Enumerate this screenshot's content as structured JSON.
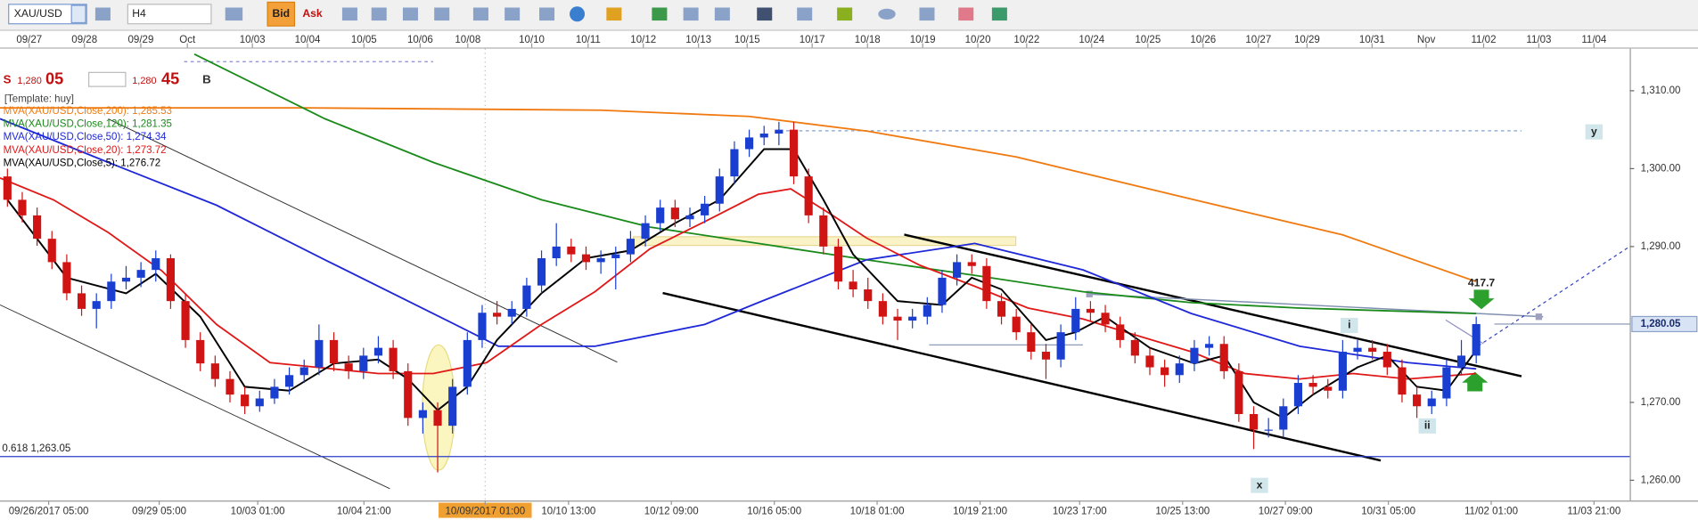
{
  "toolbar": {
    "symbol": "XAU/USD",
    "timeframe": "H4",
    "bid": "Bid",
    "ask": "Ask"
  },
  "quote": {
    "sell": "S",
    "sell_big": "1,280",
    "sell_pips": "05",
    "buy_big": "1,280",
    "buy_pips": "45",
    "buy": "B"
  },
  "template": "[Template: huy]",
  "chart_data": {
    "type": "candlestick",
    "symbol": "XAU/USD",
    "xlim": [
      -0.5,
      109.35
    ],
    "ylim": [
      1257.4,
      1315.4
    ],
    "yticks": [
      {
        "value": 1260,
        "label": "1,260.00"
      },
      {
        "value": 1270,
        "label": "1,270.00"
      },
      {
        "value": 1290,
        "label": "1,290.00"
      },
      {
        "value": 1300,
        "label": "1,300.00"
      },
      {
        "value": 1310,
        "label": "1,310.00"
      }
    ],
    "last_price": {
      "value": 1280.05,
      "label": "1,280.05"
    },
    "top_xticks": [
      {
        "value": 1.47,
        "label": "09/27"
      },
      {
        "value": 5.19,
        "label": "09/28"
      },
      {
        "value": 8.99,
        "label": "09/29"
      },
      {
        "value": 12.13,
        "label": "Oct"
      },
      {
        "value": 16.51,
        "label": "10/03"
      },
      {
        "value": 20.23,
        "label": "10/04"
      },
      {
        "value": 24.03,
        "label": "10/05"
      },
      {
        "value": 27.82,
        "label": "10/06"
      },
      {
        "value": 31.03,
        "label": "10/08"
      },
      {
        "value": 35.34,
        "label": "10/10"
      },
      {
        "value": 39.14,
        "label": "10/11"
      },
      {
        "value": 42.86,
        "label": "10/12"
      },
      {
        "value": 46.58,
        "label": "10/13"
      },
      {
        "value": 49.86,
        "label": "10/15"
      },
      {
        "value": 54.24,
        "label": "10/17"
      },
      {
        "value": 57.97,
        "label": "10/18"
      },
      {
        "value": 61.69,
        "label": "10/19"
      },
      {
        "value": 65.41,
        "label": "10/20"
      },
      {
        "value": 68.7,
        "label": "10/22"
      },
      {
        "value": 73.08,
        "label": "10/24"
      },
      {
        "value": 76.87,
        "label": "10/25"
      },
      {
        "value": 80.59,
        "label": "10/26"
      },
      {
        "value": 84.32,
        "label": "10/27"
      },
      {
        "value": 87.6,
        "label": "10/29"
      },
      {
        "value": 91.98,
        "label": "10/31"
      },
      {
        "value": 95.63,
        "label": "Nov"
      },
      {
        "value": 99.5,
        "label": "11/02"
      },
      {
        "value": 103.22,
        "label": "11/03"
      },
      {
        "value": 106.94,
        "label": "11/04"
      }
    ],
    "xticks": [
      {
        "value": 2.78,
        "label": "09/26/2017 05:00"
      },
      {
        "value": 10.23,
        "label": "09/29 05:00"
      },
      {
        "value": 16.87,
        "label": "10/03 01:00"
      },
      {
        "value": 24.03,
        "label": "10/04 21:00"
      },
      {
        "value": 32.2,
        "label": "10/09/2017 01:00"
      },
      {
        "value": 37.82,
        "label": "10/10 13:00"
      },
      {
        "value": 44.75,
        "label": "10/12 09:00"
      },
      {
        "value": 51.69,
        "label": "10/16 05:00"
      },
      {
        "value": 58.62,
        "label": "10/18 01:00"
      },
      {
        "value": 65.56,
        "label": "10/19 21:00"
      },
      {
        "value": 72.27,
        "label": "10/23 17:00"
      },
      {
        "value": 79.21,
        "label": "10/25 13:00"
      },
      {
        "value": 86.14,
        "label": "10/27 09:00"
      },
      {
        "value": 93.08,
        "label": "10/31 05:00"
      },
      {
        "value": 100.01,
        "label": "11/02 01:00"
      },
      {
        "value": 106.94,
        "label": "11/03 21:00"
      }
    ],
    "cursor_xtick": 4,
    "up_color": "#1a3fd0",
    "down_color": "#d01414",
    "ohlc": [
      [
        1299,
        1300,
        1295.1,
        1296
      ],
      [
        1296,
        1297,
        1293.1,
        1294
      ],
      [
        1294,
        1295,
        1290.1,
        1291
      ],
      [
        1291,
        1292,
        1287.1,
        1288
      ],
      [
        1288,
        1289,
        1283.1,
        1284
      ],
      [
        1284,
        1285,
        1281.1,
        1282
      ],
      [
        1282,
        1284,
        1279.5,
        1283
      ],
      [
        1283,
        1286.5,
        1282,
        1285.5
      ],
      [
        1285.5,
        1287.5,
        1284.5,
        1286
      ],
      [
        1286,
        1288,
        1284.8,
        1287
      ],
      [
        1287,
        1289.5,
        1285.5,
        1288.5
      ],
      [
        1288.5,
        1289,
        1282,
        1283
      ],
      [
        1283,
        1284,
        1277,
        1278
      ],
      [
        1278,
        1279,
        1274,
        1275
      ],
      [
        1275,
        1276,
        1272,
        1273
      ],
      [
        1273,
        1274,
        1270,
        1271
      ],
      [
        1271,
        1272,
        1268.5,
        1269.5
      ],
      [
        1269.5,
        1271.5,
        1268.8,
        1270.5
      ],
      [
        1270.5,
        1273,
        1269.8,
        1272
      ],
      [
        1272,
        1274.5,
        1271,
        1273.5
      ],
      [
        1273.5,
        1275.5,
        1272.5,
        1274.5
      ],
      [
        1274.5,
        1280,
        1273.5,
        1278
      ],
      [
        1278,
        1279,
        1274,
        1275
      ],
      [
        1275,
        1276,
        1273,
        1274
      ],
      [
        1274,
        1277,
        1273,
        1276
      ],
      [
        1276,
        1278.5,
        1275,
        1277
      ],
      [
        1277,
        1278,
        1273,
        1274
      ],
      [
        1274,
        1275,
        1267,
        1268
      ],
      [
        1268,
        1270,
        1266,
        1269
      ],
      [
        1269,
        1270,
        1261,
        1267
      ],
      [
        1267,
        1273,
        1266,
        1272
      ],
      [
        1272,
        1279,
        1271,
        1278
      ],
      [
        1278,
        1282.5,
        1277,
        1281.5
      ],
      [
        1281.5,
        1283,
        1280,
        1281
      ],
      [
        1281,
        1283,
        1280,
        1282
      ],
      [
        1282,
        1286,
        1281,
        1285
      ],
      [
        1285,
        1289.5,
        1284,
        1288.5
      ],
      [
        1288.5,
        1293,
        1287.5,
        1290
      ],
      [
        1290,
        1291,
        1288,
        1289
      ],
      [
        1289,
        1290,
        1287,
        1288
      ],
      [
        1288,
        1289.5,
        1286.5,
        1288.5
      ],
      [
        1288.5,
        1290,
        1284.5,
        1289
      ],
      [
        1289,
        1292,
        1288,
        1291
      ],
      [
        1291,
        1294,
        1290,
        1293
      ],
      [
        1293,
        1296,
        1292,
        1295
      ],
      [
        1295,
        1296,
        1292.5,
        1293.5
      ],
      [
        1293.5,
        1295,
        1292.5,
        1294
      ],
      [
        1294,
        1296.5,
        1293,
        1295.5
      ],
      [
        1295.5,
        1300,
        1294.5,
        1299
      ],
      [
        1299,
        1303.5,
        1298,
        1302.5
      ],
      [
        1302.5,
        1305,
        1301.5,
        1304
      ],
      [
        1304,
        1305.5,
        1303,
        1304.5
      ],
      [
        1304.5,
        1306,
        1303,
        1305
      ],
      [
        1305,
        1306,
        1298,
        1299
      ],
      [
        1299,
        1300,
        1293,
        1294
      ],
      [
        1294,
        1295,
        1289,
        1290
      ],
      [
        1290,
        1291,
        1284.5,
        1285.5
      ],
      [
        1285.5,
        1287,
        1283.5,
        1284.5
      ],
      [
        1284.5,
        1286,
        1282,
        1283
      ],
      [
        1283,
        1284,
        1280,
        1281
      ],
      [
        1281,
        1282,
        1278,
        1280.5
      ],
      [
        1280.5,
        1282,
        1279.5,
        1281
      ],
      [
        1281,
        1283.5,
        1280,
        1282.5
      ],
      [
        1282.5,
        1287,
        1281.5,
        1286
      ],
      [
        1286,
        1289,
        1285,
        1288
      ],
      [
        1288,
        1289,
        1286.5,
        1287.5
      ],
      [
        1287.5,
        1288.5,
        1282,
        1283
      ],
      [
        1283,
        1284,
        1280,
        1281
      ],
      [
        1281,
        1282,
        1278,
        1279
      ],
      [
        1279,
        1280,
        1275.5,
        1276.5
      ],
      [
        1276.5,
        1277.5,
        1273,
        1275.5
      ],
      [
        1275.5,
        1280,
        1274.5,
        1279
      ],
      [
        1279,
        1283.5,
        1278,
        1282
      ],
      [
        1282,
        1283,
        1280.5,
        1281.5
      ],
      [
        1281.5,
        1282.5,
        1279,
        1280
      ],
      [
        1280,
        1281,
        1277,
        1278
      ],
      [
        1278,
        1279,
        1275,
        1276
      ],
      [
        1276,
        1277,
        1273.5,
        1274.5
      ],
      [
        1274.5,
        1275.5,
        1272,
        1273.5
      ],
      [
        1273.5,
        1276,
        1272.5,
        1275
      ],
      [
        1275,
        1278,
        1274,
        1277
      ],
      [
        1277,
        1278.5,
        1276,
        1277.5
      ],
      [
        1277.5,
        1278.5,
        1273,
        1274
      ],
      [
        1274,
        1275,
        1267.5,
        1268.5
      ],
      [
        1268.5,
        1269.5,
        1264,
        1266.5
      ],
      [
        1266.5,
        1268,
        1265.5,
        1266.5
      ],
      [
        1266.5,
        1270.5,
        1265.5,
        1269.5
      ],
      [
        1269.5,
        1273.5,
        1268.5,
        1272.5
      ],
      [
        1272.5,
        1273.5,
        1271,
        1272
      ],
      [
        1272,
        1273,
        1270.5,
        1271.5
      ],
      [
        1271.5,
        1278,
        1270.5,
        1276.5
      ],
      [
        1276.5,
        1278,
        1275.5,
        1277
      ],
      [
        1277,
        1278,
        1275.5,
        1276.5
      ],
      [
        1276.5,
        1277.5,
        1273.5,
        1274.5
      ],
      [
        1274.5,
        1275.5,
        1270,
        1271
      ],
      [
        1271,
        1272,
        1268,
        1269.5
      ],
      [
        1269.5,
        1271.5,
        1268.5,
        1270.5
      ],
      [
        1270.5,
        1275.5,
        1269.5,
        1274.5
      ],
      [
        1274.5,
        1278,
        1273.5,
        1276
      ],
      [
        1276,
        1281,
        1275,
        1280.05
      ]
    ],
    "series": [
      {
        "name": "MVA(XAU/USD,Close,200): 1,285.53",
        "color": "#f07a10",
        "x": [
          -0.5,
          20,
          40,
          50,
          58,
          68,
          80,
          90,
          99
        ],
        "values": [
          1307.8,
          1307.8,
          1307.5,
          1306.7,
          1304.8,
          1301.5,
          1296,
          1291.5,
          1285.5
        ]
      },
      {
        "name": "MVA(XAU/USD,Close,120): 1,281.35",
        "color": "#1a8a1a",
        "x": [
          12.6,
          21.4,
          28.7,
          36,
          43.3,
          50.6,
          57.9,
          65.2,
          72.5,
          79.8,
          87.1,
          99
        ],
        "values": [
          1314.7,
          1306.4,
          1300.8,
          1296,
          1292.5,
          1290.4,
          1288.3,
          1286.3,
          1284.2,
          1282.8,
          1282.1,
          1281.4
        ]
      },
      {
        "name": "MVA(XAU/USD,Close,50): 1,274.34",
        "color": "#1e28d8",
        "x": [
          -0.5,
          6.8,
          14.1,
          21.4,
          28.7,
          33.1,
          39.6,
          47,
          50.6,
          57.9,
          65.2,
          72.5,
          79.8,
          87.1,
          94.4,
          99
        ],
        "values": [
          1306.4,
          1300.8,
          1295.3,
          1288.3,
          1281.4,
          1277.2,
          1277.2,
          1280,
          1282.8,
          1288.3,
          1290.4,
          1287,
          1281.4,
          1277.2,
          1275.1,
          1274.3
        ]
      },
      {
        "name": "MVA(XAU/USD,Close,20): 1,273.72",
        "color": "#e01818",
        "x": [
          -0.5,
          3.1,
          6.8,
          10.4,
          14.1,
          17.7,
          21.4,
          25,
          28.7,
          32.3,
          36,
          39.6,
          43.3,
          47,
          50.6,
          52.8,
          55.7,
          57.9,
          61.5,
          65.2,
          68.8,
          72.5,
          76.1,
          79.8,
          83.4,
          87.1,
          90.7,
          94.4,
          99
        ],
        "values": [
          1298.8,
          1296,
          1291.8,
          1286.9,
          1280,
          1275.1,
          1274.4,
          1273.7,
          1273.7,
          1275.1,
          1280,
          1284.2,
          1289.7,
          1293.2,
          1296.7,
          1297.4,
          1293.9,
          1291.1,
          1287.6,
          1284.9,
          1282.1,
          1280.7,
          1278.6,
          1276.5,
          1273.7,
          1273,
          1273.7,
          1273,
          1273.7
        ]
      },
      {
        "name": "MVA(XAU/USD,Close,5): 1,276.72",
        "color": "#000000",
        "x": [
          0,
          4,
          8,
          10,
          13,
          16,
          19,
          22,
          25,
          27,
          29,
          31,
          33,
          36,
          39,
          42,
          45,
          48,
          51,
          53,
          55,
          57,
          60,
          63,
          65,
          67,
          70,
          72,
          74,
          77,
          80,
          82,
          84,
          86,
          88,
          91,
          93,
          95,
          97,
          99
        ],
        "values": [
          1296,
          1286,
          1284,
          1286.5,
          1281,
          1272,
          1271.5,
          1275,
          1275.5,
          1273,
          1269,
          1272,
          1278,
          1284,
          1288.5,
          1289.5,
          1293,
          1296,
          1302.5,
          1302.5,
          1296,
          1289,
          1283,
          1282.5,
          1286,
          1284.5,
          1278,
          1279,
          1281,
          1277,
          1275,
          1276,
          1270,
          1268,
          1271,
          1274.5,
          1276,
          1272,
          1271.5,
          1276.7
        ]
      }
    ],
    "hlines": [
      {
        "value": 1263.05,
        "label": "0.618 1,263.05",
        "color": "#2a3ec8"
      }
    ],
    "annotations": [
      "417.7",
      "y",
      "x",
      "i",
      "ii"
    ]
  }
}
